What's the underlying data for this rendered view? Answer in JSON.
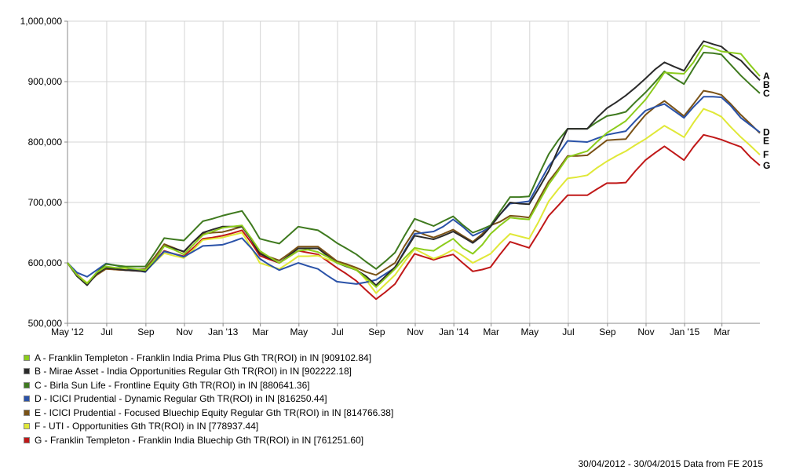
{
  "chart_data": {
    "type": "line",
    "title": "",
    "xlabel": "",
    "ylabel": "",
    "ylim": [
      500000,
      1000000
    ],
    "y_ticks": [
      "500,000",
      "600,000",
      "700,000",
      "800,000",
      "900,000",
      "1,000,000"
    ],
    "y_tick_values": [
      500000,
      600000,
      700000,
      800000,
      900000,
      1000000
    ],
    "x_tick_labels": [
      "May '12",
      "Jul",
      "Sep",
      "Nov",
      "Jan '13",
      "Mar",
      "May",
      "Jul",
      "Sep",
      "Nov",
      "Jan '14",
      "Mar",
      "May",
      "Jul",
      "Sep",
      "Nov",
      "Jan '15",
      "Mar"
    ],
    "x_tick_dates": [
      "2012-04-30",
      "2012-07-01",
      "2012-09-01",
      "2012-11-01",
      "2013-01-01",
      "2013-03-01",
      "2013-05-01",
      "2013-07-01",
      "2013-09-01",
      "2013-11-01",
      "2014-01-01",
      "2014-03-01",
      "2014-05-01",
      "2014-07-01",
      "2014-09-01",
      "2014-11-01",
      "2015-01-01",
      "2015-03-01"
    ],
    "x": [
      "2012-04-30",
      "2012-05-15",
      "2012-05-31",
      "2012-06-15",
      "2012-06-30",
      "2012-07-15",
      "2012-07-31",
      "2012-08-15",
      "2012-08-31",
      "2012-09-15",
      "2012-09-30",
      "2012-10-15",
      "2012-10-31",
      "2012-11-15",
      "2012-11-30",
      "2012-12-15",
      "2012-12-31",
      "2013-01-15",
      "2013-01-31",
      "2013-02-15",
      "2013-02-28",
      "2013-03-15",
      "2013-03-31",
      "2013-04-15",
      "2013-04-30",
      "2013-05-15",
      "2013-05-31",
      "2013-06-15",
      "2013-06-30",
      "2013-07-15",
      "2013-07-31",
      "2013-08-15",
      "2013-08-31",
      "2013-09-15",
      "2013-09-30",
      "2013-10-15",
      "2013-10-31",
      "2013-11-15",
      "2013-11-30",
      "2013-12-15",
      "2013-12-31",
      "2014-01-15",
      "2014-01-31",
      "2014-02-15",
      "2014-02-28",
      "2014-03-15",
      "2014-03-31",
      "2014-04-15",
      "2014-04-30",
      "2014-05-15",
      "2014-05-31",
      "2014-06-15",
      "2014-06-30",
      "2014-07-15",
      "2014-07-31",
      "2014-08-15",
      "2014-08-31",
      "2014-09-15",
      "2014-09-30",
      "2014-10-15",
      "2014-10-31",
      "2014-11-15",
      "2014-11-30",
      "2014-12-15",
      "2014-12-31",
      "2015-01-15",
      "2015-01-31",
      "2015-02-15",
      "2015-02-28",
      "2015-03-15",
      "2015-03-31",
      "2015-04-15",
      "2015-04-30"
    ],
    "series": [
      {
        "name": "A - Franklin Templeton - Franklin India Prima Plus Gth TR(ROI) in IN [909102.84]",
        "label": "A",
        "color": "#8ccc1c",
        "values": [
          600000,
          580000,
          566000,
          584000,
          594000,
          592000,
          592000,
          590000,
          588000,
          605000,
          628000,
          622000,
          614000,
          630000,
          646000,
          652000,
          658000,
          660000,
          662000,
          640000,
          620000,
          610000,
          600000,
          610000,
          620000,
          622000,
          618000,
          610000,
          600000,
          595000,
          588000,
          575000,
          560000,
          575000,
          590000,
          608000,
          625000,
          622000,
          620000,
          630000,
          640000,
          625000,
          615000,
          630000,
          648000,
          662000,
          675000,
          673000,
          672000,
          700000,
          730000,
          752000,
          775000,
          780000,
          785000,
          800000,
          815000,
          825000,
          835000,
          852000,
          870000,
          892000,
          915000,
          914000,
          913000,
          932000,
          960000,
          955000,
          950000,
          948000,
          946000,
          927000,
          909103
        ]
      },
      {
        "name": "B - Mirae Asset - India Opportunities Regular Gth TR(ROI) in IN [902222.18]",
        "label": "B",
        "color": "#2b2b2b",
        "values": [
          600000,
          578000,
          563000,
          582000,
          592000,
          590000,
          588000,
          587000,
          586000,
          605000,
          628000,
          624000,
          619000,
          635000,
          650000,
          655000,
          660000,
          660000,
          660000,
          638000,
          615000,
          608000,
          600000,
          612000,
          624000,
          624000,
          624000,
          612000,
          600000,
          594000,
          588000,
          578000,
          563000,
          578000,
          593000,
          618000,
          645000,
          642000,
          639000,
          645000,
          652000,
          643000,
          633000,
          645000,
          660000,
          680000,
          700000,
          698000,
          697000,
          723000,
          752000,
          788000,
          822000,
          822000,
          822000,
          840000,
          856000,
          866000,
          877000,
          890000,
          905000,
          920000,
          932000,
          925000,
          918000,
          943000,
          967000,
          962000,
          958000,
          945000,
          935000,
          918000,
          902222
        ]
      },
      {
        "name": "C - Birla Sun Life - Frontline Equity Gth TR(ROI) in IN [880641.36]",
        "label": "C",
        "color": "#3f7a1f",
        "values": [
          600000,
          580000,
          565000,
          584000,
          598000,
          596000,
          594000,
          594000,
          594000,
          617000,
          641000,
          639000,
          637000,
          653000,
          669000,
          673000,
          678000,
          682000,
          686000,
          663000,
          640000,
          636000,
          632000,
          646000,
          660000,
          657000,
          654000,
          644000,
          633000,
          624000,
          614000,
          602000,
          590000,
          603000,
          617000,
          645000,
          673000,
          667000,
          661000,
          669000,
          677000,
          663000,
          650000,
          656000,
          662000,
          685000,
          709000,
          709000,
          710000,
          745000,
          780000,
          803000,
          822000,
          822000,
          822000,
          833000,
          843000,
          846000,
          850000,
          866000,
          882000,
          899000,
          917000,
          906000,
          896000,
          922000,
          948000,
          947000,
          945000,
          928000,
          910000,
          895000,
          880641
        ]
      },
      {
        "name": "D - ICICI Prudential - Dynamic Regular Gth TR(ROI) in IN [816250.44]",
        "label": "D",
        "color": "#2a52a8",
        "values": [
          600000,
          584000,
          577000,
          588000,
          599000,
          596000,
          592000,
          588000,
          585000,
          602000,
          619000,
          615000,
          610000,
          619000,
          628000,
          629000,
          630000,
          635000,
          641000,
          624000,
          607000,
          597000,
          588000,
          594000,
          600000,
          595000,
          590000,
          579000,
          569000,
          567000,
          565000,
          568000,
          572000,
          582000,
          592000,
          620000,
          648000,
          650000,
          652000,
          660000,
          672000,
          660000,
          645000,
          652000,
          660000,
          680000,
          698000,
          700000,
          702000,
          730000,
          760000,
          780000,
          802000,
          801000,
          800000,
          806000,
          812000,
          815000,
          818000,
          835000,
          852000,
          858000,
          863000,
          852000,
          840000,
          858000,
          875000,
          875000,
          874000,
          860000,
          840000,
          828000,
          816250
        ]
      },
      {
        "name": "E - ICICI Prudential - Focused Bluechip Equity Regular Gth TR(ROI) in IN [814766.38]",
        "label": "E",
        "color": "#7a5216",
        "values": [
          600000,
          578000,
          565000,
          580000,
          590000,
          589000,
          588000,
          589000,
          590000,
          610000,
          631000,
          625000,
          618000,
          635000,
          648000,
          650000,
          651000,
          655000,
          660000,
          640000,
          617000,
          610000,
          604000,
          615000,
          627000,
          627000,
          627000,
          615000,
          603000,
          598000,
          592000,
          585000,
          580000,
          590000,
          600000,
          628000,
          654000,
          647000,
          642000,
          648000,
          655000,
          645000,
          635000,
          648000,
          662000,
          668000,
          678000,
          677000,
          675000,
          705000,
          735000,
          755000,
          777000,
          777000,
          778000,
          790000,
          803000,
          804000,
          805000,
          825000,
          845000,
          858000,
          868000,
          856000,
          843000,
          863000,
          885000,
          882000,
          878000,
          863000,
          845000,
          830000,
          814766
        ]
      },
      {
        "name": "F - UTI - Opportunities Gth TR(ROI) in IN [778937.44]",
        "label": "F",
        "color": "#e0e838",
        "values": [
          600000,
          580000,
          567000,
          582000,
          591000,
          590000,
          589000,
          588000,
          587000,
          601000,
          616000,
          612000,
          608000,
          622000,
          638000,
          640000,
          642000,
          646000,
          650000,
          625000,
          600000,
          595000,
          590000,
          600000,
          611000,
          611000,
          612000,
          606000,
          601000,
          596000,
          590000,
          572000,
          550000,
          565000,
          580000,
          602000,
          623000,
          615000,
          607000,
          613000,
          622000,
          612000,
          600000,
          608000,
          615000,
          632000,
          648000,
          644000,
          640000,
          668000,
          702000,
          722000,
          740000,
          742000,
          745000,
          757000,
          768000,
          777000,
          785000,
          795000,
          805000,
          816000,
          827000,
          818000,
          808000,
          832000,
          855000,
          849000,
          842000,
          825000,
          808000,
          794000,
          778937
        ]
      },
      {
        "name": "G - Franklin Templeton - Franklin India Bluechip Gth TR(ROI) in IN [761251.60]",
        "label": "G",
        "color": "#c01818",
        "values": [
          600000,
          581000,
          566000,
          582000,
          591000,
          589000,
          588000,
          587000,
          586000,
          603000,
          620000,
          615000,
          611000,
          625000,
          640000,
          642000,
          645000,
          649000,
          654000,
          633000,
          612000,
          606000,
          600000,
          610000,
          620000,
          617000,
          614000,
          603000,
          592000,
          582000,
          570000,
          555000,
          540000,
          552000,
          565000,
          590000,
          615000,
          610000,
          605000,
          610000,
          614000,
          600000,
          586000,
          589000,
          593000,
          614000,
          635000,
          630000,
          625000,
          650000,
          678000,
          695000,
          712000,
          712000,
          712000,
          722000,
          732000,
          732000,
          733000,
          752000,
          770000,
          782000,
          793000,
          782000,
          770000,
          792000,
          812000,
          808000,
          804000,
          798000,
          792000,
          775000,
          761252
        ]
      }
    ],
    "legend": "bottom-left",
    "grid": true
  },
  "footer": "30/04/2012 - 30/04/2015 Data from FE 2015"
}
